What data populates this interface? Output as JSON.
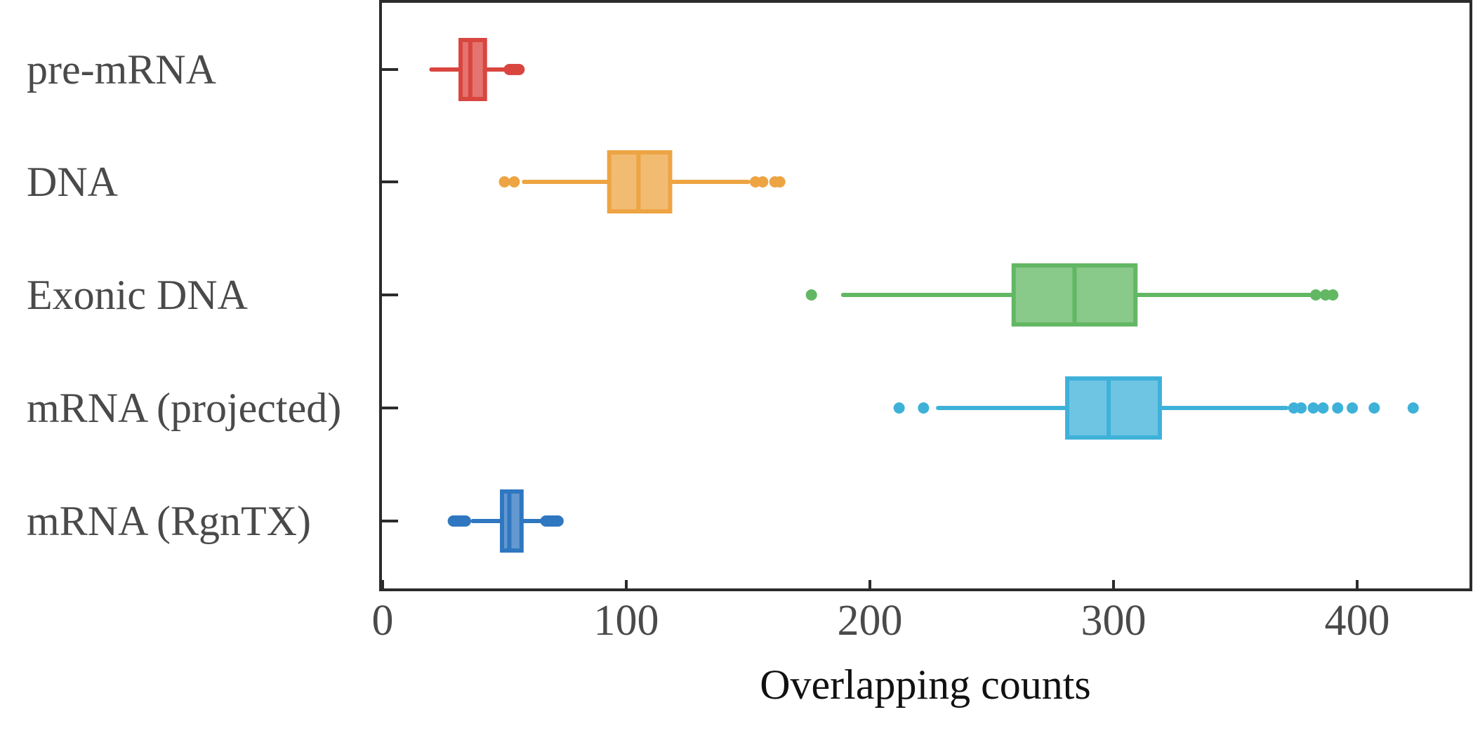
{
  "chart_data": {
    "type": "boxplot",
    "orientation": "horizontal",
    "title": "",
    "xlabel": "Overlapping counts",
    "ylabel": "",
    "xlim": [
      0,
      445
    ],
    "xticks": [
      0,
      100,
      200,
      300,
      400
    ],
    "xtick_labels": [
      "0",
      "100",
      "200",
      "300",
      "400"
    ],
    "grid": false,
    "legend": "none",
    "categories": [
      {
        "name": "pre-mRNA",
        "color": "#d9453f",
        "whisker_low": 20,
        "q1": 32,
        "median": 36,
        "q3": 42,
        "whisker_high": 51,
        "outliers": [
          52,
          53,
          54,
          55,
          56
        ]
      },
      {
        "name": "DNA",
        "color": "#eda443",
        "whisker_low": 58,
        "q1": 93,
        "median": 105,
        "q3": 118,
        "whisker_high": 150,
        "outliers": [
          50,
          54,
          153,
          156,
          161,
          163
        ]
      },
      {
        "name": "Exonic DNA",
        "color": "#62b763",
        "whisker_low": 189,
        "q1": 259,
        "median": 284,
        "q3": 309,
        "whisker_high": 381,
        "outliers": [
          176,
          383,
          387,
          390
        ]
      },
      {
        "name": "mRNA (projected)",
        "color": "#3eb1d9",
        "whisker_low": 228,
        "q1": 281,
        "median": 298,
        "q3": 319,
        "whisker_high": 371,
        "outliers": [
          212,
          222,
          374,
          377,
          382,
          386,
          392,
          398,
          407,
          423
        ]
      },
      {
        "name": "mRNA (RgnTX)",
        "color": "#2f77c0",
        "whisker_low": 37,
        "q1": 49,
        "median": 52,
        "q3": 57,
        "whisker_high": 66,
        "outliers": [
          29,
          30,
          31,
          32,
          33,
          34,
          67,
          68,
          69,
          70,
          71,
          72
        ]
      }
    ]
  }
}
